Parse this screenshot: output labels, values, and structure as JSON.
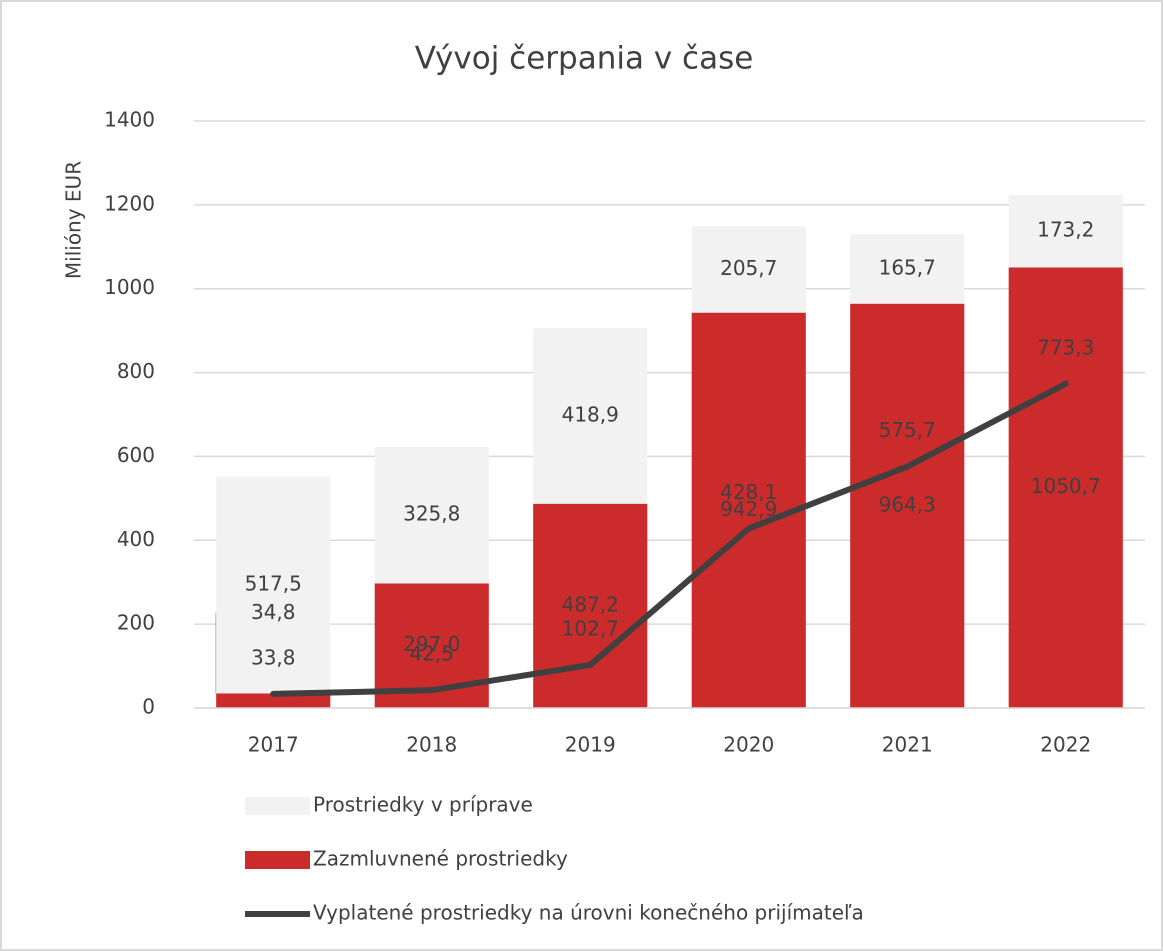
{
  "chart_data": {
    "type": "bar",
    "stacked": true,
    "title": "Vývoj čerpania v čase",
    "y_label": "Milióny EUR",
    "categories": [
      "2017",
      "2018",
      "2019",
      "2020",
      "2021",
      "2022"
    ],
    "series": [
      {
        "name": "Prostriedky v príprave",
        "type": "bar",
        "color": "#f2f2f2",
        "values": [
          517.5,
          325.8,
          418.9,
          205.7,
          165.7,
          173.2
        ],
        "value_labels": [
          "517,5",
          "325,8",
          "418,9",
          "205,7",
          "165,7",
          "173,2"
        ]
      },
      {
        "name": "Zazmluvnené prostriedky",
        "type": "bar",
        "color": "#cc2b2b",
        "values": [
          34.8,
          297.0,
          487.2,
          942.9,
          964.3,
          1050.7
        ],
        "value_labels": [
          "34,8",
          "297,0",
          "487,2",
          "942,9",
          "964,3",
          "1050,7"
        ]
      },
      {
        "name": "Vyplatené prostriedky na úrovni konečného prijímateľa",
        "type": "line",
        "color": "#404040",
        "values": [
          33.8,
          42.5,
          102.7,
          428.1,
          575.7,
          773.3
        ],
        "value_labels": [
          "33,8",
          "42,5",
          "102,7",
          "428,1",
          "575,7",
          "773,3"
        ]
      }
    ],
    "ylim": [
      0,
      1400
    ],
    "yticks": [
      0,
      200,
      400,
      600,
      800,
      1000,
      1200,
      1400
    ],
    "grid": true
  }
}
